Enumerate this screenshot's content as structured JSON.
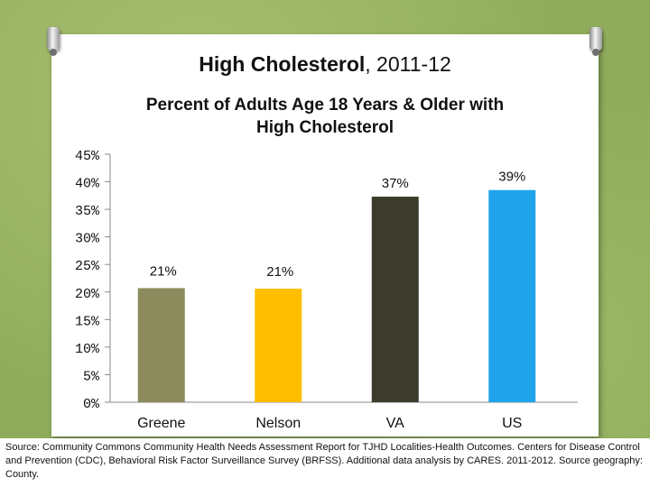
{
  "title": {
    "bold": "High Cholesterol",
    "rest": ", 2011-12"
  },
  "chart_data": {
    "type": "bar",
    "title": "Percent of Adults Age 18 Years & Older with High Cholesterol",
    "title_lines": [
      "Percent of Adults Age 18 Years & Older with",
      "High Cholesterol"
    ],
    "categories": [
      "Greene",
      "Nelson",
      "VA",
      "US"
    ],
    "values": [
      20.7,
      20.6,
      37.3,
      38.5
    ],
    "data_labels": [
      "21%",
      "21%",
      "37%",
      "39%"
    ],
    "colors": [
      "#8b8b5e",
      "#ffbf00",
      "#3d3b2b",
      "#1fa4eb"
    ],
    "yticks": [
      "0%",
      "5%",
      "10%",
      "15%",
      "20%",
      "25%",
      "30%",
      "35%",
      "40%",
      "45%"
    ],
    "ylim": [
      0,
      45
    ],
    "xlabel": "",
    "ylabel": "",
    "grid": false
  },
  "source": "Source: Community Commons Community Health Needs Assessment Report for TJHD Localities-Health Outcomes. Centers for Disease Control and Prevention (CDC), Behavioral Risk Factor Surveillance Survey (BRFSS). Additional data analysis by CARES. 2011-2012. Source geography: County."
}
